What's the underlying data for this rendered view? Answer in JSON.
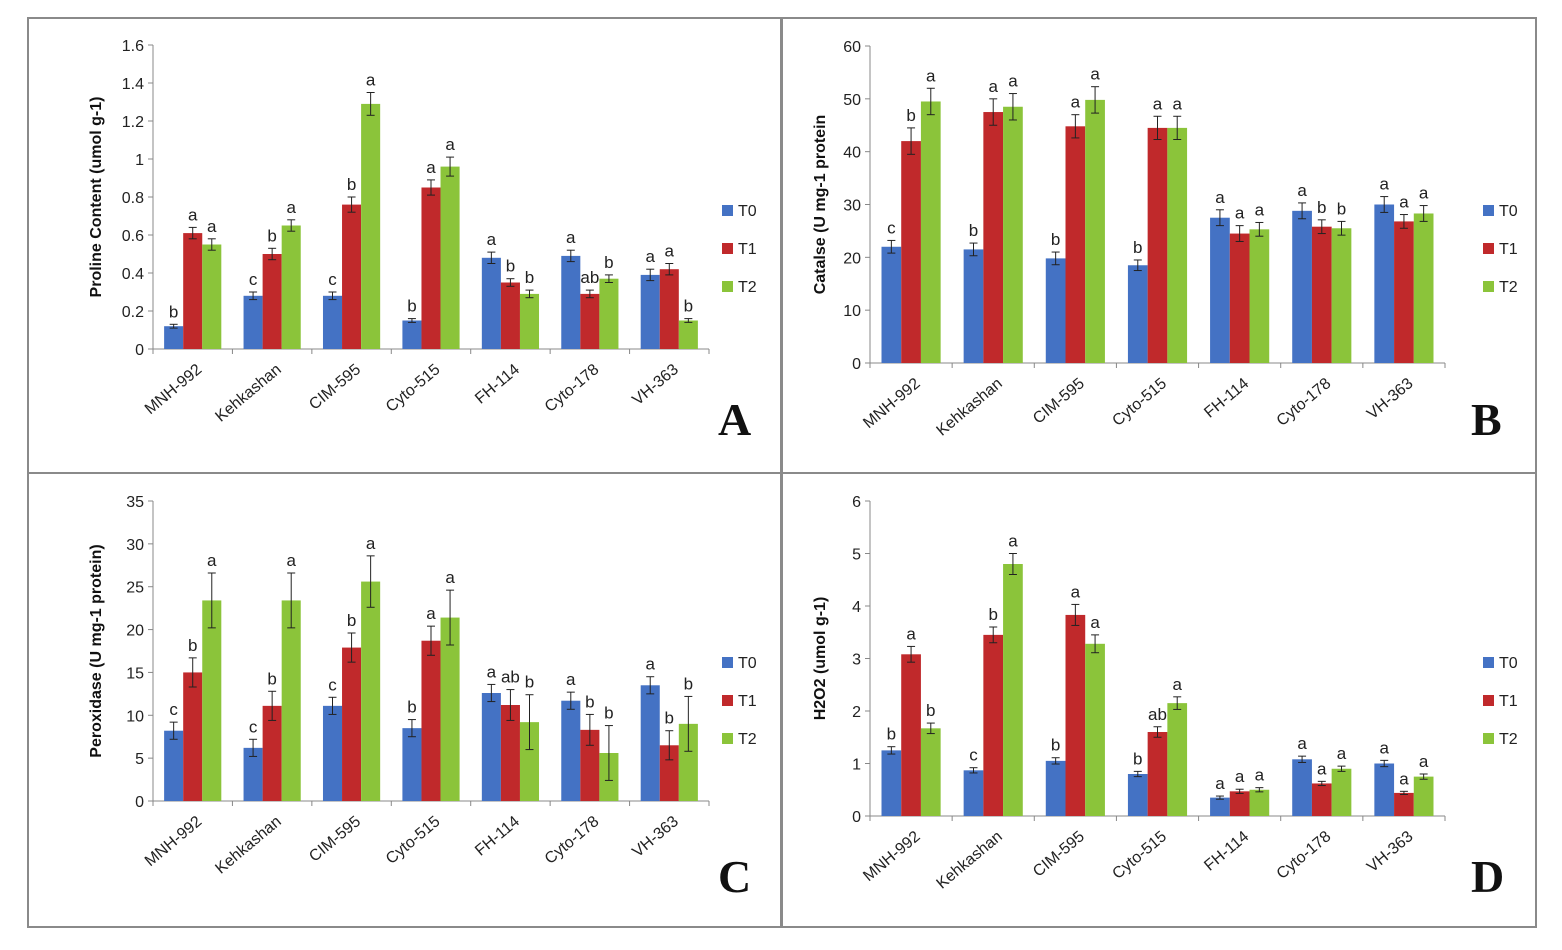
{
  "colors": {
    "T0": "#4472C4",
    "T1": "#C0292B",
    "T2": "#8BC43A",
    "axis": "#888888"
  },
  "chart_data": [
    {
      "panel_label": "A",
      "type": "bar",
      "ylabel": "Proline Content (umol g-1)",
      "ylim": [
        0,
        1.6
      ],
      "yticks": [
        "0",
        "0.2",
        "0.4",
        "0.6",
        "0.8",
        "1",
        "1.2",
        "1.4",
        "1.6"
      ],
      "ytick_values": [
        0,
        0.2,
        0.4,
        0.6,
        0.8,
        1.0,
        1.2,
        1.4,
        1.6
      ],
      "categories": [
        "MNH-992",
        "Kehkashan",
        "CIM-595",
        "Cyto-515",
        "FH-114",
        "Cyto-178",
        "VH-363"
      ],
      "legend": [
        "T0",
        "T1",
        "T2"
      ],
      "series": [
        {
          "name": "T0",
          "values": [
            0.12,
            0.28,
            0.28,
            0.15,
            0.48,
            0.49,
            0.39
          ],
          "errors": [
            0.01,
            0.02,
            0.02,
            0.01,
            0.03,
            0.03,
            0.03
          ],
          "letters": [
            "b",
            "c",
            "c",
            "b",
            "a",
            "a",
            "a"
          ]
        },
        {
          "name": "T1",
          "values": [
            0.61,
            0.5,
            0.76,
            0.85,
            0.35,
            0.29,
            0.42
          ],
          "errors": [
            0.03,
            0.03,
            0.04,
            0.04,
            0.02,
            0.02,
            0.03
          ],
          "letters": [
            "a",
            "b",
            "b",
            "a",
            "b",
            "ab",
            "a"
          ]
        },
        {
          "name": "T2",
          "values": [
            0.55,
            0.65,
            1.29,
            0.96,
            0.29,
            0.37,
            0.15
          ],
          "errors": [
            0.03,
            0.03,
            0.06,
            0.05,
            0.02,
            0.02,
            0.01
          ],
          "letters": [
            "a",
            "a",
            "a",
            "a",
            "b",
            "b",
            "b"
          ]
        }
      ]
    },
    {
      "panel_label": "B",
      "type": "bar",
      "ylabel": "Catalse (U mg-1 protein",
      "ylim": [
        0,
        60
      ],
      "yticks": [
        "0",
        "10",
        "20",
        "30",
        "40",
        "50",
        "60"
      ],
      "ytick_values": [
        0,
        10,
        20,
        30,
        40,
        50,
        60
      ],
      "categories": [
        "MNH-992",
        "Kehkashan",
        "CIM-595",
        "Cyto-515",
        "FH-114",
        "Cyto-178",
        "VH-363"
      ],
      "legend": [
        "T0",
        "T1",
        "T2"
      ],
      "series": [
        {
          "name": "T0",
          "values": [
            22,
            21.5,
            19.8,
            18.5,
            27.5,
            28.8,
            30
          ],
          "errors": [
            1.2,
            1.2,
            1.2,
            1.0,
            1.5,
            1.5,
            1.5
          ],
          "letters": [
            "c",
            "b",
            "b",
            "b",
            "a",
            "a",
            "a"
          ]
        },
        {
          "name": "T1",
          "values": [
            42,
            47.5,
            44.8,
            44.5,
            24.5,
            25.8,
            26.8
          ],
          "errors": [
            2.5,
            2.5,
            2.2,
            2.2,
            1.5,
            1.3,
            1.3
          ],
          "letters": [
            "b",
            "a",
            "a",
            "a",
            "a",
            "b",
            "a"
          ]
        },
        {
          "name": "T2",
          "values": [
            49.5,
            48.5,
            49.8,
            44.5,
            25.3,
            25.5,
            28.3
          ],
          "errors": [
            2.5,
            2.5,
            2.5,
            2.2,
            1.3,
            1.3,
            1.5
          ],
          "letters": [
            "a",
            "a",
            "a",
            "a",
            "a",
            "b",
            "a"
          ]
        }
      ]
    },
    {
      "panel_label": "C",
      "type": "bar",
      "ylabel": "Peroxidase (U mg-1 protein)",
      "ylim": [
        0,
        35
      ],
      "yticks": [
        "0",
        "5",
        "10",
        "15",
        "20",
        "25",
        "30",
        "35"
      ],
      "ytick_values": [
        0,
        5,
        10,
        15,
        20,
        25,
        30,
        35
      ],
      "categories": [
        "MNH-992",
        "Kehkashan",
        "CIM-595",
        "Cyto-515",
        "FH-114",
        "Cyto-178",
        "VH-363"
      ],
      "legend": [
        "T0",
        "T1",
        "T2"
      ],
      "series": [
        {
          "name": "T0",
          "values": [
            8.2,
            6.2,
            11.1,
            8.5,
            12.6,
            11.7,
            13.5
          ],
          "errors": [
            1.0,
            1.0,
            1.0,
            1.0,
            1.0,
            1.0,
            1.0
          ],
          "letters": [
            "c",
            "c",
            "c",
            "b",
            "a",
            "a",
            "a"
          ]
        },
        {
          "name": "T1",
          "values": [
            15,
            11.1,
            17.9,
            18.7,
            11.2,
            8.3,
            6.5
          ],
          "errors": [
            1.7,
            1.7,
            1.7,
            1.7,
            1.8,
            1.8,
            1.7
          ],
          "letters": [
            "b",
            "b",
            "b",
            "a",
            "ab",
            "b",
            "b"
          ]
        },
        {
          "name": "T2",
          "values": [
            23.4,
            23.4,
            25.6,
            21.4,
            9.2,
            5.6,
            9.0
          ],
          "errors": [
            3.2,
            3.2,
            3.0,
            3.2,
            3.2,
            3.2,
            3.2
          ],
          "letters": [
            "a",
            "a",
            "a",
            "a",
            "b",
            "b",
            "b"
          ]
        }
      ]
    },
    {
      "panel_label": "D",
      "type": "bar",
      "ylabel": "H2O2   (umol g-1)",
      "ylim": [
        0,
        6
      ],
      "yticks": [
        "0",
        "1",
        "2",
        "3",
        "4",
        "5",
        "6"
      ],
      "ytick_values": [
        0,
        1,
        2,
        3,
        4,
        5,
        6
      ],
      "categories": [
        "MNH-992",
        "Kehkashan",
        "CIM-595",
        "Cyto-515",
        "FH-114",
        "Cyto-178",
        "VH-363"
      ],
      "legend": [
        "T0",
        "T1",
        "T2"
      ],
      "series": [
        {
          "name": "T0",
          "values": [
            1.25,
            0.87,
            1.05,
            0.8,
            0.35,
            1.08,
            1.0
          ],
          "errors": [
            0.07,
            0.05,
            0.06,
            0.05,
            0.03,
            0.06,
            0.06
          ],
          "letters": [
            "b",
            "c",
            "b",
            "b",
            "a",
            "a",
            "a"
          ]
        },
        {
          "name": "T1",
          "values": [
            3.08,
            3.45,
            3.83,
            1.6,
            0.47,
            0.62,
            0.44
          ],
          "errors": [
            0.15,
            0.15,
            0.2,
            0.1,
            0.04,
            0.04,
            0.03
          ],
          "letters": [
            "a",
            "b",
            "a",
            "ab",
            "a",
            "a",
            "a"
          ]
        },
        {
          "name": "T2",
          "values": [
            1.67,
            4.8,
            3.28,
            2.15,
            0.5,
            0.9,
            0.75
          ],
          "errors": [
            0.1,
            0.2,
            0.17,
            0.12,
            0.04,
            0.05,
            0.05
          ],
          "letters": [
            "b",
            "a",
            "a",
            "a",
            "a",
            "a",
            "a"
          ]
        }
      ]
    }
  ]
}
